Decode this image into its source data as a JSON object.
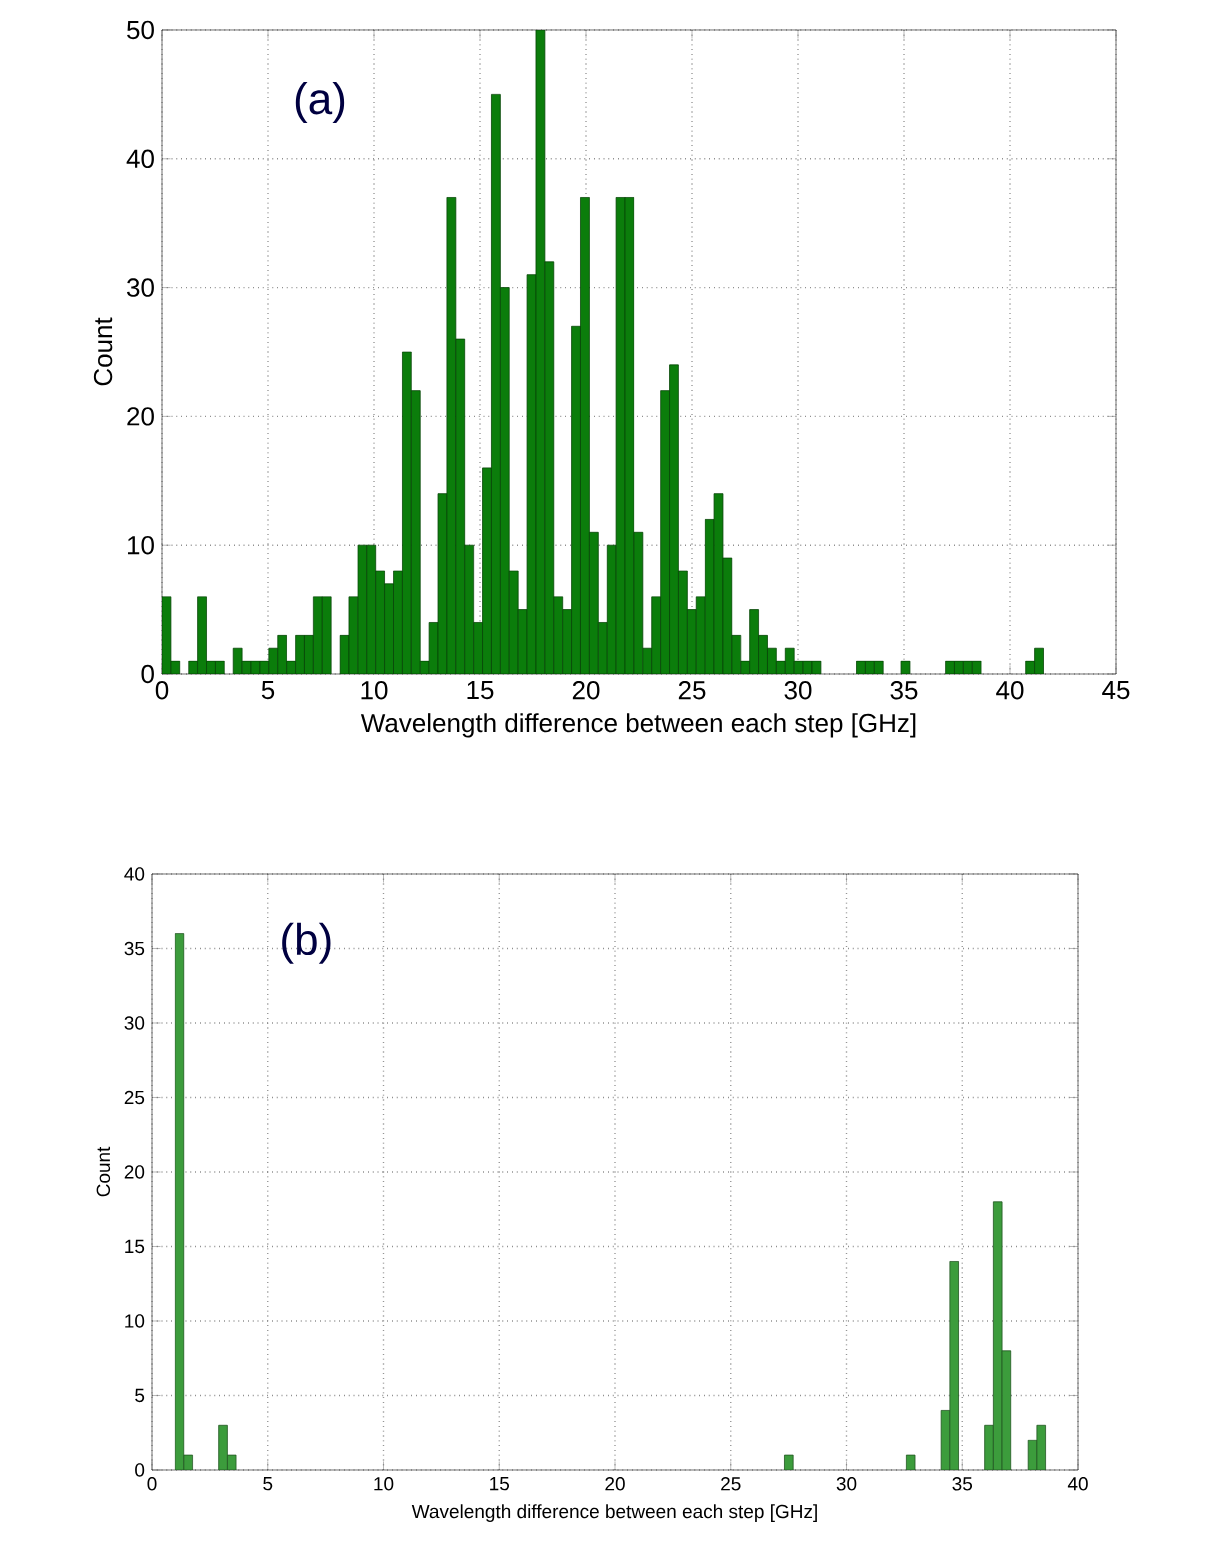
{
  "chart_data": [
    {
      "type": "histogram",
      "annotations": [
        "(a)"
      ],
      "xlabel": "Wavelength difference between each step [GHz]",
      "ylabel": "Count",
      "color": "#0b7d0b",
      "grid": true,
      "xlim": [
        0,
        45
      ],
      "xticks": [
        0,
        5,
        10,
        15,
        20,
        25,
        30,
        35,
        40,
        45
      ],
      "ylim": [
        0,
        50
      ],
      "yticks": [
        0,
        10,
        20,
        30,
        40,
        50
      ],
      "bins": [
        0,
        0.42,
        0.84,
        1.26,
        1.68,
        2.1,
        2.52,
        2.94,
        3.36,
        3.78,
        4.2,
        4.62,
        5.04,
        5.46,
        5.88,
        6.3,
        6.72,
        7.14,
        7.56,
        7.98,
        8.4,
        8.82,
        9.24,
        9.66,
        10.08,
        10.5,
        10.92,
        11.34,
        11.76,
        12.18,
        12.6,
        13.02,
        13.44,
        13.86,
        14.28,
        14.7,
        15.12,
        15.54,
        15.96,
        16.38,
        16.8,
        17.22,
        17.64,
        18.06,
        18.48,
        18.9,
        19.32,
        19.74,
        20.16,
        20.58,
        21,
        21.42,
        21.84,
        22.26,
        22.68,
        23.1,
        23.52,
        23.94,
        24.36,
        24.78,
        25.2,
        25.62,
        26.04,
        26.46,
        26.88,
        27.3,
        27.72,
        28.14,
        28.56,
        28.98,
        29.4,
        29.82,
        30.24,
        30.66,
        31.08,
        31.5,
        31.92,
        32.34,
        32.76,
        33.18,
        33.6,
        34.02,
        34.44,
        34.86,
        35.28,
        35.7,
        36.12,
        36.54,
        36.96,
        37.38,
        37.8,
        38.22,
        38.64,
        39.06,
        39.48,
        39.9,
        40.32,
        40.74,
        41.16,
        41.58,
        42
      ],
      "values": [
        6,
        1,
        0,
        1,
        6,
        1,
        1,
        0,
        2,
        1,
        1,
        1,
        2,
        3,
        1,
        3,
        3,
        6,
        6,
        0,
        3,
        6,
        10,
        10,
        8,
        7,
        8,
        25,
        22,
        1,
        4,
        14,
        37,
        26,
        10,
        4,
        16,
        45,
        30,
        8,
        5,
        31,
        50,
        32,
        6,
        5,
        27,
        37,
        11,
        4,
        10,
        37,
        37,
        11,
        2,
        6,
        22,
        24,
        8,
        5,
        6,
        12,
        14,
        9,
        3,
        1,
        5,
        3,
        2,
        1,
        2,
        1,
        1,
        1,
        0,
        0,
        0,
        0,
        1,
        1,
        1,
        0,
        0,
        1,
        0,
        0,
        0,
        0,
        1,
        1,
        1,
        1,
        0,
        0,
        0,
        0,
        0,
        1,
        2,
        0
      ]
    },
    {
      "type": "histogram",
      "annotations": [
        "(b)"
      ],
      "xlabel": "Wavelength difference between each step [GHz]",
      "ylabel": "Count",
      "color": "#3c9c3c",
      "grid": true,
      "xlim": [
        0,
        40
      ],
      "xticks": [
        0,
        5,
        10,
        15,
        20,
        25,
        30,
        35,
        40
      ],
      "ylim": [
        0,
        40
      ],
      "yticks": [
        0,
        5,
        10,
        15,
        20,
        25,
        30,
        35,
        40
      ],
      "bins": [
        1,
        1.376,
        1.752,
        2.128,
        2.504,
        2.88,
        3.256,
        3.632,
        4.008,
        4.384,
        4.76,
        5.136,
        5.512,
        5.888,
        6.264,
        6.64,
        7.016,
        7.392,
        7.768,
        8.144,
        8.52,
        8.896,
        9.272,
        9.648,
        10.024,
        10.4,
        10.776,
        11.152,
        11.528,
        11.904,
        12.28,
        12.656,
        13.032,
        13.408,
        13.784,
        14.16,
        14.536,
        14.912,
        15.288,
        15.664,
        16.04,
        16.416,
        16.792,
        17.168,
        17.544,
        17.92,
        18.296,
        18.672,
        19.048,
        19.424,
        19.8,
        20.176,
        20.552,
        20.928,
        21.304,
        21.68,
        22.056,
        22.432,
        22.808,
        23.184,
        23.56,
        23.936,
        24.312,
        24.688,
        25.064,
        25.44,
        25.816,
        26.192,
        26.568,
        26.944,
        27.32,
        27.696,
        28.072,
        28.448,
        28.824,
        29.2,
        29.576,
        29.952,
        30.328,
        30.704,
        31.08,
        31.456,
        31.832,
        32.208,
        32.584,
        32.96,
        33.336,
        33.712,
        34.088,
        34.464,
        34.84,
        35.216,
        35.592,
        35.968,
        36.344,
        36.72,
        37.096,
        37.472,
        37.848,
        38.224,
        38.6
      ],
      "values": [
        36,
        1,
        0,
        0,
        0,
        3,
        1,
        0,
        0,
        0,
        0,
        0,
        0,
        0,
        0,
        0,
        0,
        0,
        0,
        0,
        0,
        0,
        0,
        0,
        0,
        0,
        0,
        0,
        0,
        0,
        0,
        0,
        0,
        0,
        0,
        0,
        0,
        0,
        0,
        0,
        0,
        0,
        0,
        0,
        0,
        0,
        0,
        0,
        0,
        0,
        0,
        0,
        0,
        0,
        0,
        0,
        0,
        0,
        0,
        0,
        0,
        0,
        0,
        0,
        0,
        0,
        0,
        0,
        0,
        0,
        1,
        0,
        0,
        0,
        0,
        0,
        0,
        0,
        0,
        0,
        0,
        0,
        0,
        0,
        1,
        0,
        0,
        0,
        4,
        14,
        0,
        0,
        0,
        3,
        18,
        8,
        0,
        0,
        2,
        3
      ]
    }
  ]
}
